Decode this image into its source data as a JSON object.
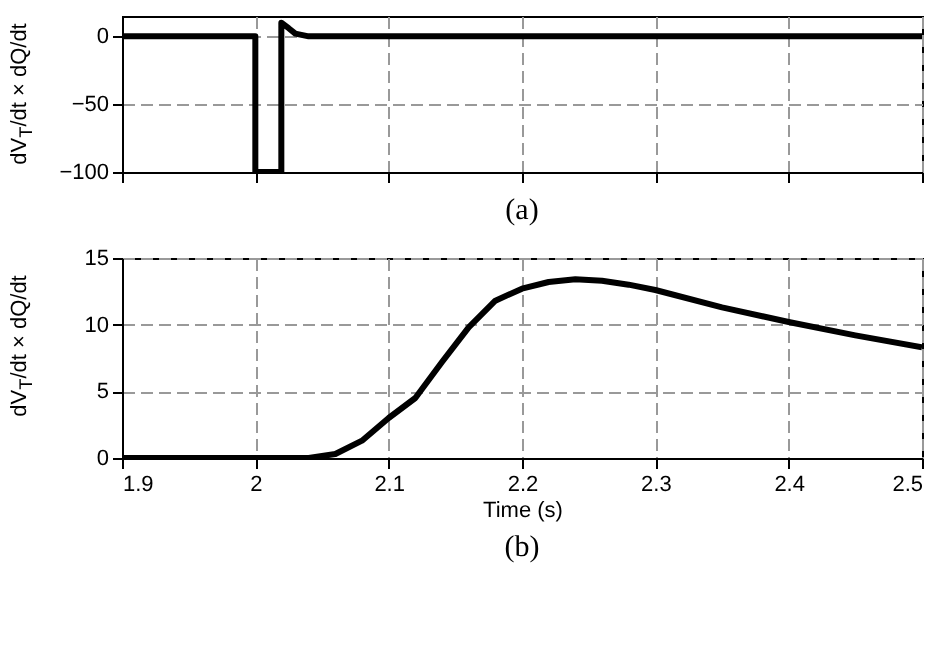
{
  "chart_data": [
    {
      "type": "line",
      "title": "(a)",
      "ylabel": "dV$_{T}$/dt × dQ/dt",
      "tick_labels": "y",
      "grid": true,
      "color": "#000000",
      "x": [
        1.9,
        2.0,
        2.0,
        2.0195,
        2.0195,
        2.025,
        2.03,
        2.04,
        2.5
      ],
      "values": [
        0,
        0,
        -100,
        -100,
        10,
        6,
        2,
        0,
        0
      ],
      "xlim": [
        1.9,
        2.5
      ],
      "xticks": [
        1.9,
        2,
        2.1,
        2.2,
        2.3,
        2.4,
        2.5
      ],
      "ylim": [
        -100,
        15
      ],
      "yticks": [
        -100,
        -50,
        0
      ]
    },
    {
      "type": "line",
      "title": "(b)",
      "xlabel": "Time (s)",
      "ylabel": "dV$_{T}$/dt × dQ/dt",
      "grid": true,
      "color": "#000000",
      "x": [
        1.9,
        2.04,
        2.06,
        2.08,
        2.1,
        2.12,
        2.14,
        2.16,
        2.18,
        2.2,
        2.22,
        2.24,
        2.26,
        2.28,
        2.3,
        2.35,
        2.4,
        2.45,
        2.5
      ],
      "values": [
        0,
        0,
        0.3,
        1.3,
        3,
        4.5,
        7.2,
        9.8,
        11.8,
        12.7,
        13.2,
        13.4,
        13.3,
        13,
        12.6,
        11.3,
        10.2,
        9.2,
        8.3
      ],
      "xlim": [
        1.9,
        2.5
      ],
      "xticks": [
        1.9,
        2,
        2.1,
        2.2,
        2.3,
        2.4,
        2.5
      ],
      "ylim": [
        0,
        15
      ],
      "yticks": [
        0,
        5,
        10,
        15
      ]
    }
  ]
}
